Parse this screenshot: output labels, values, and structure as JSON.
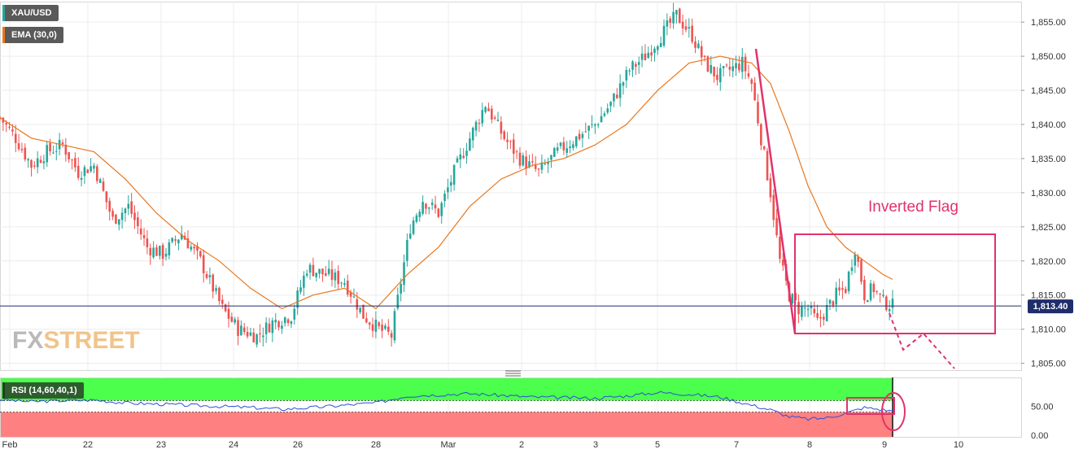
{
  "symbol": "XAU/USD",
  "ema_label": "EMA (30,0)",
  "rsi_label": "RSI (14,60,40,1)",
  "watermark": {
    "part1": "FX",
    "part2": "STREET"
  },
  "annotation": "Inverted Flag",
  "colors": {
    "up": "#26a69a",
    "down": "#ef5350",
    "ema": "#e8781e",
    "rsi": "#2a4fd6",
    "annotation": "#e0336b",
    "price_line": "#1f2d6b",
    "rsi_overbought": "#4cff4c",
    "rsi_oversold": "#ff8080"
  },
  "chart_data": [
    {
      "type": "candlestick",
      "title": "XAU/USD",
      "ylim": [
        1804,
        1858
      ],
      "yticks": [
        "1,855.00",
        "1,850.00",
        "1,845.00",
        "1,840.00",
        "1,835.00",
        "1,830.00",
        "1,825.00",
        "1,820.00",
        "1,815.00",
        "1,810.00",
        "1,805.00"
      ],
      "xticks": [
        "Feb",
        "22",
        "23",
        "24",
        "26",
        "28",
        "Mar",
        "2",
        "3",
        "5",
        "7",
        "8",
        "9",
        "10"
      ],
      "last_price": 1813.4,
      "last_price_label": "1,813.40",
      "close_path": [
        [
          0,
          1841
        ],
        [
          5,
          1838
        ],
        [
          10,
          1834
        ],
        [
          15,
          1836
        ],
        [
          20,
          1837
        ],
        [
          25,
          1833
        ],
        [
          30,
          1834
        ],
        [
          36,
          1826
        ],
        [
          41,
          1828
        ],
        [
          47,
          1822
        ],
        [
          52,
          1821
        ],
        [
          58,
          1824
        ],
        [
          64,
          1820
        ],
        [
          71,
          1813
        ],
        [
          76,
          1810
        ],
        [
          82,
          1809
        ],
        [
          87,
          1811
        ],
        [
          93,
          1812
        ],
        [
          98,
          1819
        ],
        [
          104,
          1818
        ],
        [
          110,
          1817
        ],
        [
          116,
          1812
        ],
        [
          121,
          1810
        ],
        [
          125,
          1809
        ],
        [
          131,
          1825
        ],
        [
          135,
          1829
        ],
        [
          140,
          1827
        ],
        [
          145,
          1833
        ],
        [
          150,
          1838
        ],
        [
          155,
          1843
        ],
        [
          161,
          1838
        ],
        [
          166,
          1835
        ],
        [
          172,
          1833
        ],
        [
          178,
          1836
        ],
        [
          184,
          1838
        ],
        [
          190,
          1840
        ],
        [
          195,
          1843
        ],
        [
          201,
          1848
        ],
        [
          206,
          1850
        ],
        [
          211,
          1853
        ],
        [
          216,
          1856
        ],
        [
          221,
          1853
        ],
        [
          225,
          1849
        ],
        [
          229,
          1847
        ],
        [
          233,
          1848
        ],
        [
          237,
          1849
        ],
        [
          240,
          1846
        ],
        [
          243,
          1838
        ],
        [
          246,
          1830
        ],
        [
          249,
          1820
        ],
        [
          252,
          1815
        ],
        [
          255,
          1813
        ],
        [
          258,
          1813
        ],
        [
          261,
          1811
        ],
        [
          264,
          1813
        ],
        [
          267,
          1815
        ],
        [
          270,
          1816
        ],
        [
          273,
          1822
        ],
        [
          276,
          1815
        ],
        [
          279,
          1816
        ],
        [
          282,
          1814
        ],
        [
          285,
          1813.4
        ]
      ],
      "ema_path": [
        [
          0,
          1841
        ],
        [
          10,
          1838
        ],
        [
          20,
          1837
        ],
        [
          30,
          1836
        ],
        [
          40,
          1832
        ],
        [
          50,
          1827
        ],
        [
          60,
          1823
        ],
        [
          70,
          1820
        ],
        [
          80,
          1816
        ],
        [
          90,
          1813
        ],
        [
          100,
          1815
        ],
        [
          110,
          1816
        ],
        [
          120,
          1813
        ],
        [
          130,
          1818
        ],
        [
          140,
          1822
        ],
        [
          150,
          1828
        ],
        [
          160,
          1832
        ],
        [
          170,
          1834
        ],
        [
          180,
          1835
        ],
        [
          190,
          1837
        ],
        [
          200,
          1840
        ],
        [
          210,
          1845
        ],
        [
          220,
          1849
        ],
        [
          230,
          1850
        ],
        [
          240,
          1849
        ],
        [
          246,
          1846
        ],
        [
          252,
          1839
        ],
        [
          258,
          1831
        ],
        [
          264,
          1825
        ],
        [
          270,
          1822
        ],
        [
          276,
          1820
        ],
        [
          282,
          1818
        ],
        [
          285,
          1817.3
        ]
      ],
      "series": [
        {
          "name": "EMA (30,0)",
          "kind": "ema"
        }
      ]
    },
    {
      "type": "line",
      "title": "RSI (14,60,40,1)",
      "ylim": [
        0,
        100
      ],
      "yticks": [
        "50.00",
        "0.00"
      ],
      "levels": [
        60,
        40
      ],
      "path": [
        [
          0,
          62
        ],
        [
          10,
          58
        ],
        [
          20,
          60
        ],
        [
          30,
          61
        ],
        [
          40,
          56
        ],
        [
          50,
          54
        ],
        [
          60,
          52
        ],
        [
          70,
          50
        ],
        [
          80,
          48
        ],
        [
          90,
          45
        ],
        [
          100,
          48
        ],
        [
          110,
          52
        ],
        [
          120,
          56
        ],
        [
          130,
          68
        ],
        [
          140,
          70
        ],
        [
          150,
          72
        ],
        [
          160,
          69
        ],
        [
          170,
          66
        ],
        [
          180,
          65
        ],
        [
          190,
          64
        ],
        [
          200,
          68
        ],
        [
          210,
          74
        ],
        [
          220,
          71
        ],
        [
          230,
          66
        ],
        [
          240,
          52
        ],
        [
          246,
          44
        ],
        [
          252,
          32
        ],
        [
          258,
          28
        ],
        [
          264,
          30
        ],
        [
          270,
          38
        ],
        [
          276,
          48
        ],
        [
          282,
          44
        ],
        [
          285,
          42
        ]
      ]
    }
  ]
}
